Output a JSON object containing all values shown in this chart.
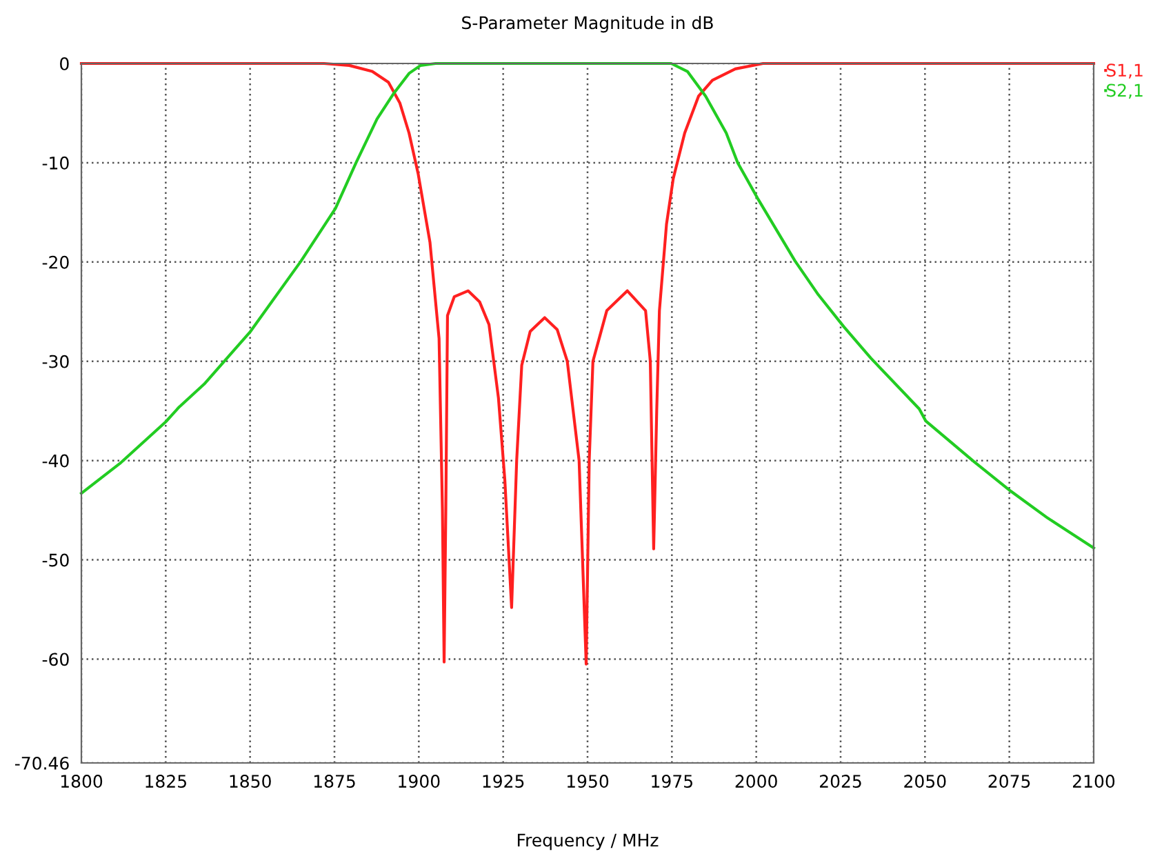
{
  "chart_data": {
    "type": "line",
    "title": "S-Parameter Magnitude in dB",
    "xlabel": "Frequency / MHz",
    "xlim": [
      1800,
      2100
    ],
    "xticks": [
      1800,
      1825,
      1850,
      1875,
      1900,
      1925,
      1950,
      1975,
      2000,
      2025,
      2050,
      2075,
      2100
    ],
    "ylim": [
      -70.46,
      0
    ],
    "yticks": [
      0,
      -10,
      -20,
      -30,
      -40,
      -50,
      -60,
      -70.46
    ],
    "grid": true,
    "legend": "top right",
    "line_style": "solid",
    "marker": "none",
    "series": [
      {
        "name": "S1,1",
        "color": "#ff2020",
        "x": [
          1800,
          1871.9,
          1879.4,
          1886.2,
          1891.0,
          1894.4,
          1897.1,
          1899.8,
          1903.3,
          1906.0,
          1907.0,
          1907.5,
          1908.0,
          1908.5,
          1910.5,
          1914.6,
          1918.0,
          1920.8,
          1923.6,
          1925.5,
          1927.5,
          1929.0,
          1930.5,
          1933.0,
          1937.3,
          1941.0,
          1944.0,
          1947.5,
          1949.6,
          1950.5,
          1951.6,
          1955.7,
          1961.8,
          1967.2,
          1968.6,
          1969.6,
          1970.5,
          1971.3,
          1973.4,
          1975.4,
          1978.8,
          1982.9,
          1987.0,
          1993.8,
          2002,
          2100
        ],
        "values": [
          0,
          0,
          -0.2,
          -0.8,
          -1.9,
          -4.0,
          -7.0,
          -11.1,
          -18.0,
          -27.7,
          -45,
          -60.3,
          -45,
          -25.4,
          -23.5,
          -22.9,
          -24.0,
          -26.3,
          -33.7,
          -42,
          -54.8,
          -40,
          -30.4,
          -27.0,
          -25.6,
          -26.8,
          -30.0,
          -40.0,
          -60.5,
          -40,
          -30.0,
          -24.9,
          -22.9,
          -24.9,
          -30.0,
          -48.9,
          -35,
          -24.9,
          -16.2,
          -11.6,
          -7.0,
          -3.3,
          -1.7,
          -0.55,
          0,
          0
        ]
      },
      {
        "name": "S2,1",
        "color": "#22cc22",
        "x": [
          1800,
          1811.4,
          1825,
          1829,
          1836.4,
          1850.1,
          1865.1,
          1875.3,
          1881.4,
          1887.6,
          1892.4,
          1897.1,
          1900.5,
          1905,
          1974.8,
          1979.6,
          1985.0,
          1991.1,
          1994.5,
          2000.6,
          2011.5,
          2018.4,
          2025.9,
          2034.0,
          2048.3,
          2050.2,
          2064.5,
          2075.5,
          2086.4,
          2100
        ],
        "values": [
          -43.3,
          -40.3,
          -36.1,
          -34.6,
          -32.3,
          -27.0,
          -19.9,
          -14.6,
          -10.0,
          -5.6,
          -3.1,
          -1.0,
          -0.2,
          0,
          0,
          -0.8,
          -3.3,
          -7.0,
          -10.0,
          -13.7,
          -19.9,
          -23.3,
          -26.5,
          -29.7,
          -34.8,
          -36.0,
          -40.1,
          -43.1,
          -45.8,
          -48.8
        ]
      }
    ]
  }
}
